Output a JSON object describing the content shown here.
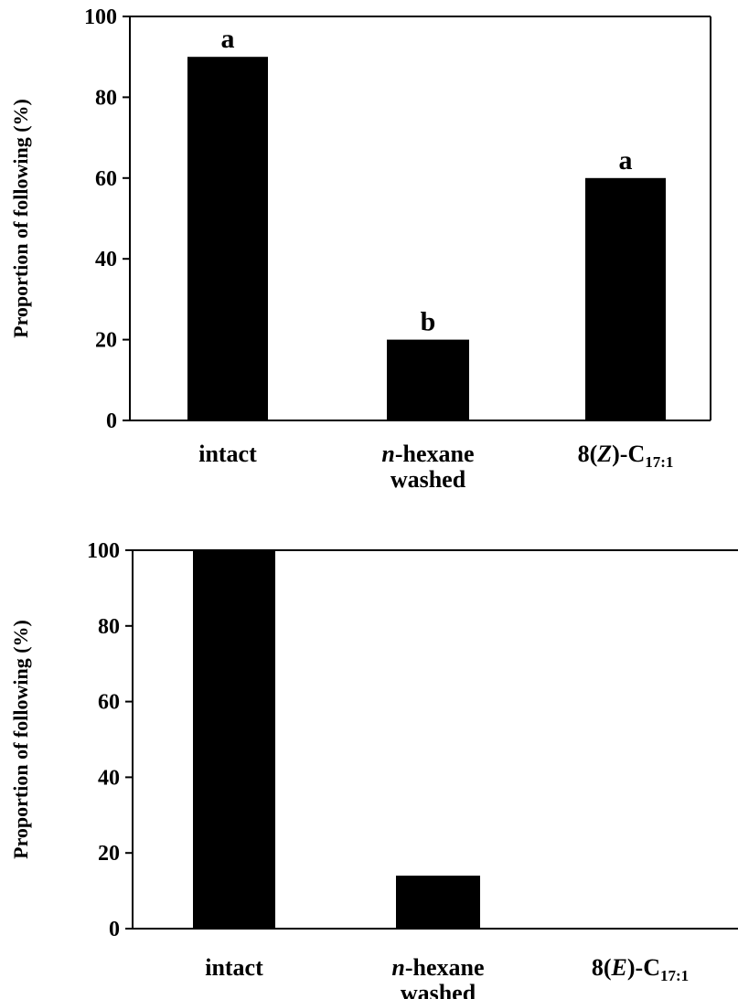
{
  "chart_data": [
    {
      "type": "bar",
      "ylabel": "Proportion of following (%)",
      "ylim": [
        0,
        100
      ],
      "yticks": [
        0,
        20,
        40,
        60,
        80,
        100
      ],
      "categories": [
        {
          "main": "n",
          "mid": "-hexane",
          "line2": "washed"
        },
        {
          "main": "intact"
        },
        {
          "main": "8(",
          "italic": "Z",
          "after": ")-C",
          "sub": "17:1"
        }
      ],
      "category_order": [
        1,
        0,
        2
      ],
      "values": [
        90,
        20,
        60
      ],
      "significance": [
        "a",
        "b",
        "a"
      ],
      "bar_color": "#000000"
    },
    {
      "type": "bar",
      "ylabel": "Proportion of following (%)",
      "ylim": [
        0,
        100
      ],
      "yticks": [
        0,
        20,
        40,
        60,
        80,
        100
      ],
      "categories": [
        {
          "main": "intact"
        },
        {
          "main": "n",
          "mid": "-hexane",
          "line2": "washed"
        },
        {
          "main": "8(",
          "italic": "E",
          "after": ")-C",
          "sub": "17:1"
        }
      ],
      "values": [
        100,
        14,
        0
      ],
      "bar_color": "#000000"
    }
  ]
}
